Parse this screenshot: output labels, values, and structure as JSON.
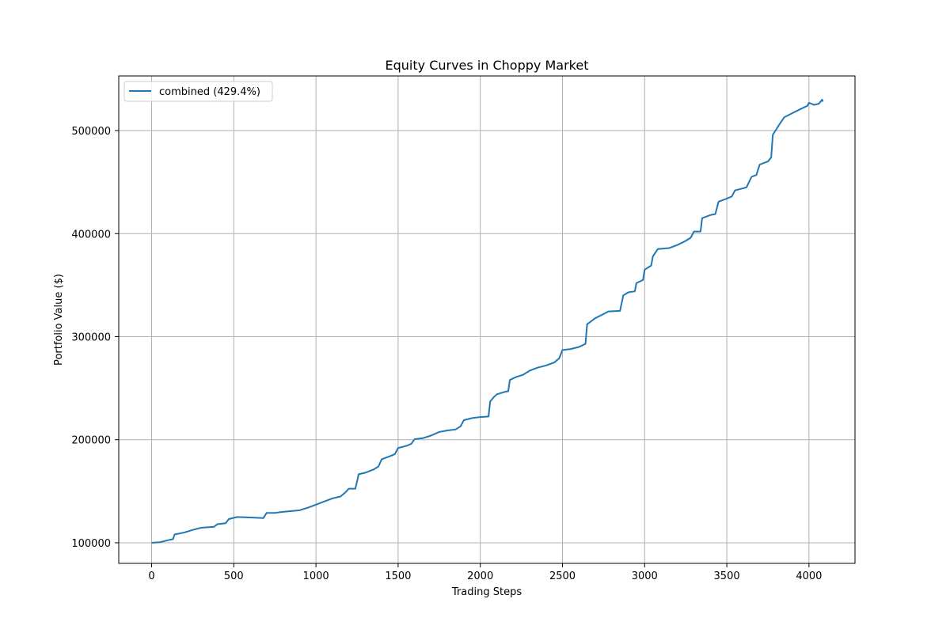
{
  "chart_data": {
    "type": "line",
    "title": "Equity Curves in Choppy Market",
    "xlabel": "Trading Steps",
    "ylabel": "Portfolio Value ($)",
    "xlim": [
      -200,
      4280
    ],
    "ylim": [
      80000,
      553000
    ],
    "xticks": [
      0,
      500,
      1000,
      1500,
      2000,
      2500,
      3000,
      3500,
      4000
    ],
    "yticks": [
      100000,
      200000,
      300000,
      400000,
      500000
    ],
    "grid": true,
    "legend_position": "upper-left",
    "series": [
      {
        "name": "combined (429.4%)",
        "color": "#1f77b4",
        "points": [
          [
            0,
            100000
          ],
          [
            50,
            100500
          ],
          [
            100,
            102500
          ],
          [
            130,
            103500
          ],
          [
            140,
            108000
          ],
          [
            200,
            110000
          ],
          [
            250,
            112500
          ],
          [
            300,
            114500
          ],
          [
            380,
            115500
          ],
          [
            400,
            118000
          ],
          [
            450,
            119000
          ],
          [
            470,
            123000
          ],
          [
            520,
            125000
          ],
          [
            600,
            124500
          ],
          [
            680,
            124000
          ],
          [
            700,
            129000
          ],
          [
            750,
            129000
          ],
          [
            800,
            130000
          ],
          [
            900,
            131500
          ],
          [
            950,
            134000
          ],
          [
            1000,
            137000
          ],
          [
            1050,
            140000
          ],
          [
            1100,
            143000
          ],
          [
            1150,
            145000
          ],
          [
            1180,
            149000
          ],
          [
            1200,
            152500
          ],
          [
            1240,
            152500
          ],
          [
            1260,
            166500
          ],
          [
            1300,
            168000
          ],
          [
            1350,
            171000
          ],
          [
            1380,
            174000
          ],
          [
            1400,
            181000
          ],
          [
            1450,
            184000
          ],
          [
            1480,
            186000
          ],
          [
            1500,
            192000
          ],
          [
            1550,
            194000
          ],
          [
            1580,
            196000
          ],
          [
            1600,
            200500
          ],
          [
            1650,
            201500
          ],
          [
            1700,
            204000
          ],
          [
            1750,
            207500
          ],
          [
            1800,
            209000
          ],
          [
            1850,
            210000
          ],
          [
            1880,
            213000
          ],
          [
            1900,
            219000
          ],
          [
            1950,
            221000
          ],
          [
            2000,
            222000
          ],
          [
            2050,
            222500
          ],
          [
            2060,
            237000
          ],
          [
            2080,
            241000
          ],
          [
            2100,
            244000
          ],
          [
            2150,
            246500
          ],
          [
            2170,
            247000
          ],
          [
            2180,
            258000
          ],
          [
            2220,
            261000
          ],
          [
            2260,
            263000
          ],
          [
            2300,
            267000
          ],
          [
            2350,
            270000
          ],
          [
            2400,
            272000
          ],
          [
            2450,
            275000
          ],
          [
            2480,
            279000
          ],
          [
            2500,
            287000
          ],
          [
            2550,
            288000
          ],
          [
            2600,
            290000
          ],
          [
            2640,
            293000
          ],
          [
            2650,
            312000
          ],
          [
            2700,
            318000
          ],
          [
            2750,
            322000
          ],
          [
            2780,
            324500
          ],
          [
            2850,
            325000
          ],
          [
            2870,
            340000
          ],
          [
            2900,
            343000
          ],
          [
            2940,
            344000
          ],
          [
            2950,
            352000
          ],
          [
            2990,
            355000
          ],
          [
            3000,
            365000
          ],
          [
            3040,
            369000
          ],
          [
            3050,
            378000
          ],
          [
            3080,
            385000
          ],
          [
            3150,
            386000
          ],
          [
            3200,
            389000
          ],
          [
            3250,
            393000
          ],
          [
            3280,
            396000
          ],
          [
            3300,
            402000
          ],
          [
            3340,
            402000
          ],
          [
            3350,
            415000
          ],
          [
            3400,
            418000
          ],
          [
            3430,
            419000
          ],
          [
            3450,
            431000
          ],
          [
            3500,
            434000
          ],
          [
            3530,
            436000
          ],
          [
            3550,
            442000
          ],
          [
            3600,
            444000
          ],
          [
            3620,
            445000
          ],
          [
            3650,
            455000
          ],
          [
            3680,
            457000
          ],
          [
            3700,
            467000
          ],
          [
            3750,
            470000
          ],
          [
            3770,
            474000
          ],
          [
            3780,
            496000
          ],
          [
            3820,
            506000
          ],
          [
            3850,
            513000
          ],
          [
            3900,
            517000
          ],
          [
            3950,
            521000
          ],
          [
            3990,
            524000
          ],
          [
            4000,
            527000
          ],
          [
            4030,
            525000
          ],
          [
            4060,
            526000
          ],
          [
            4080,
            530000
          ],
          [
            4085,
            528000
          ]
        ]
      }
    ]
  }
}
